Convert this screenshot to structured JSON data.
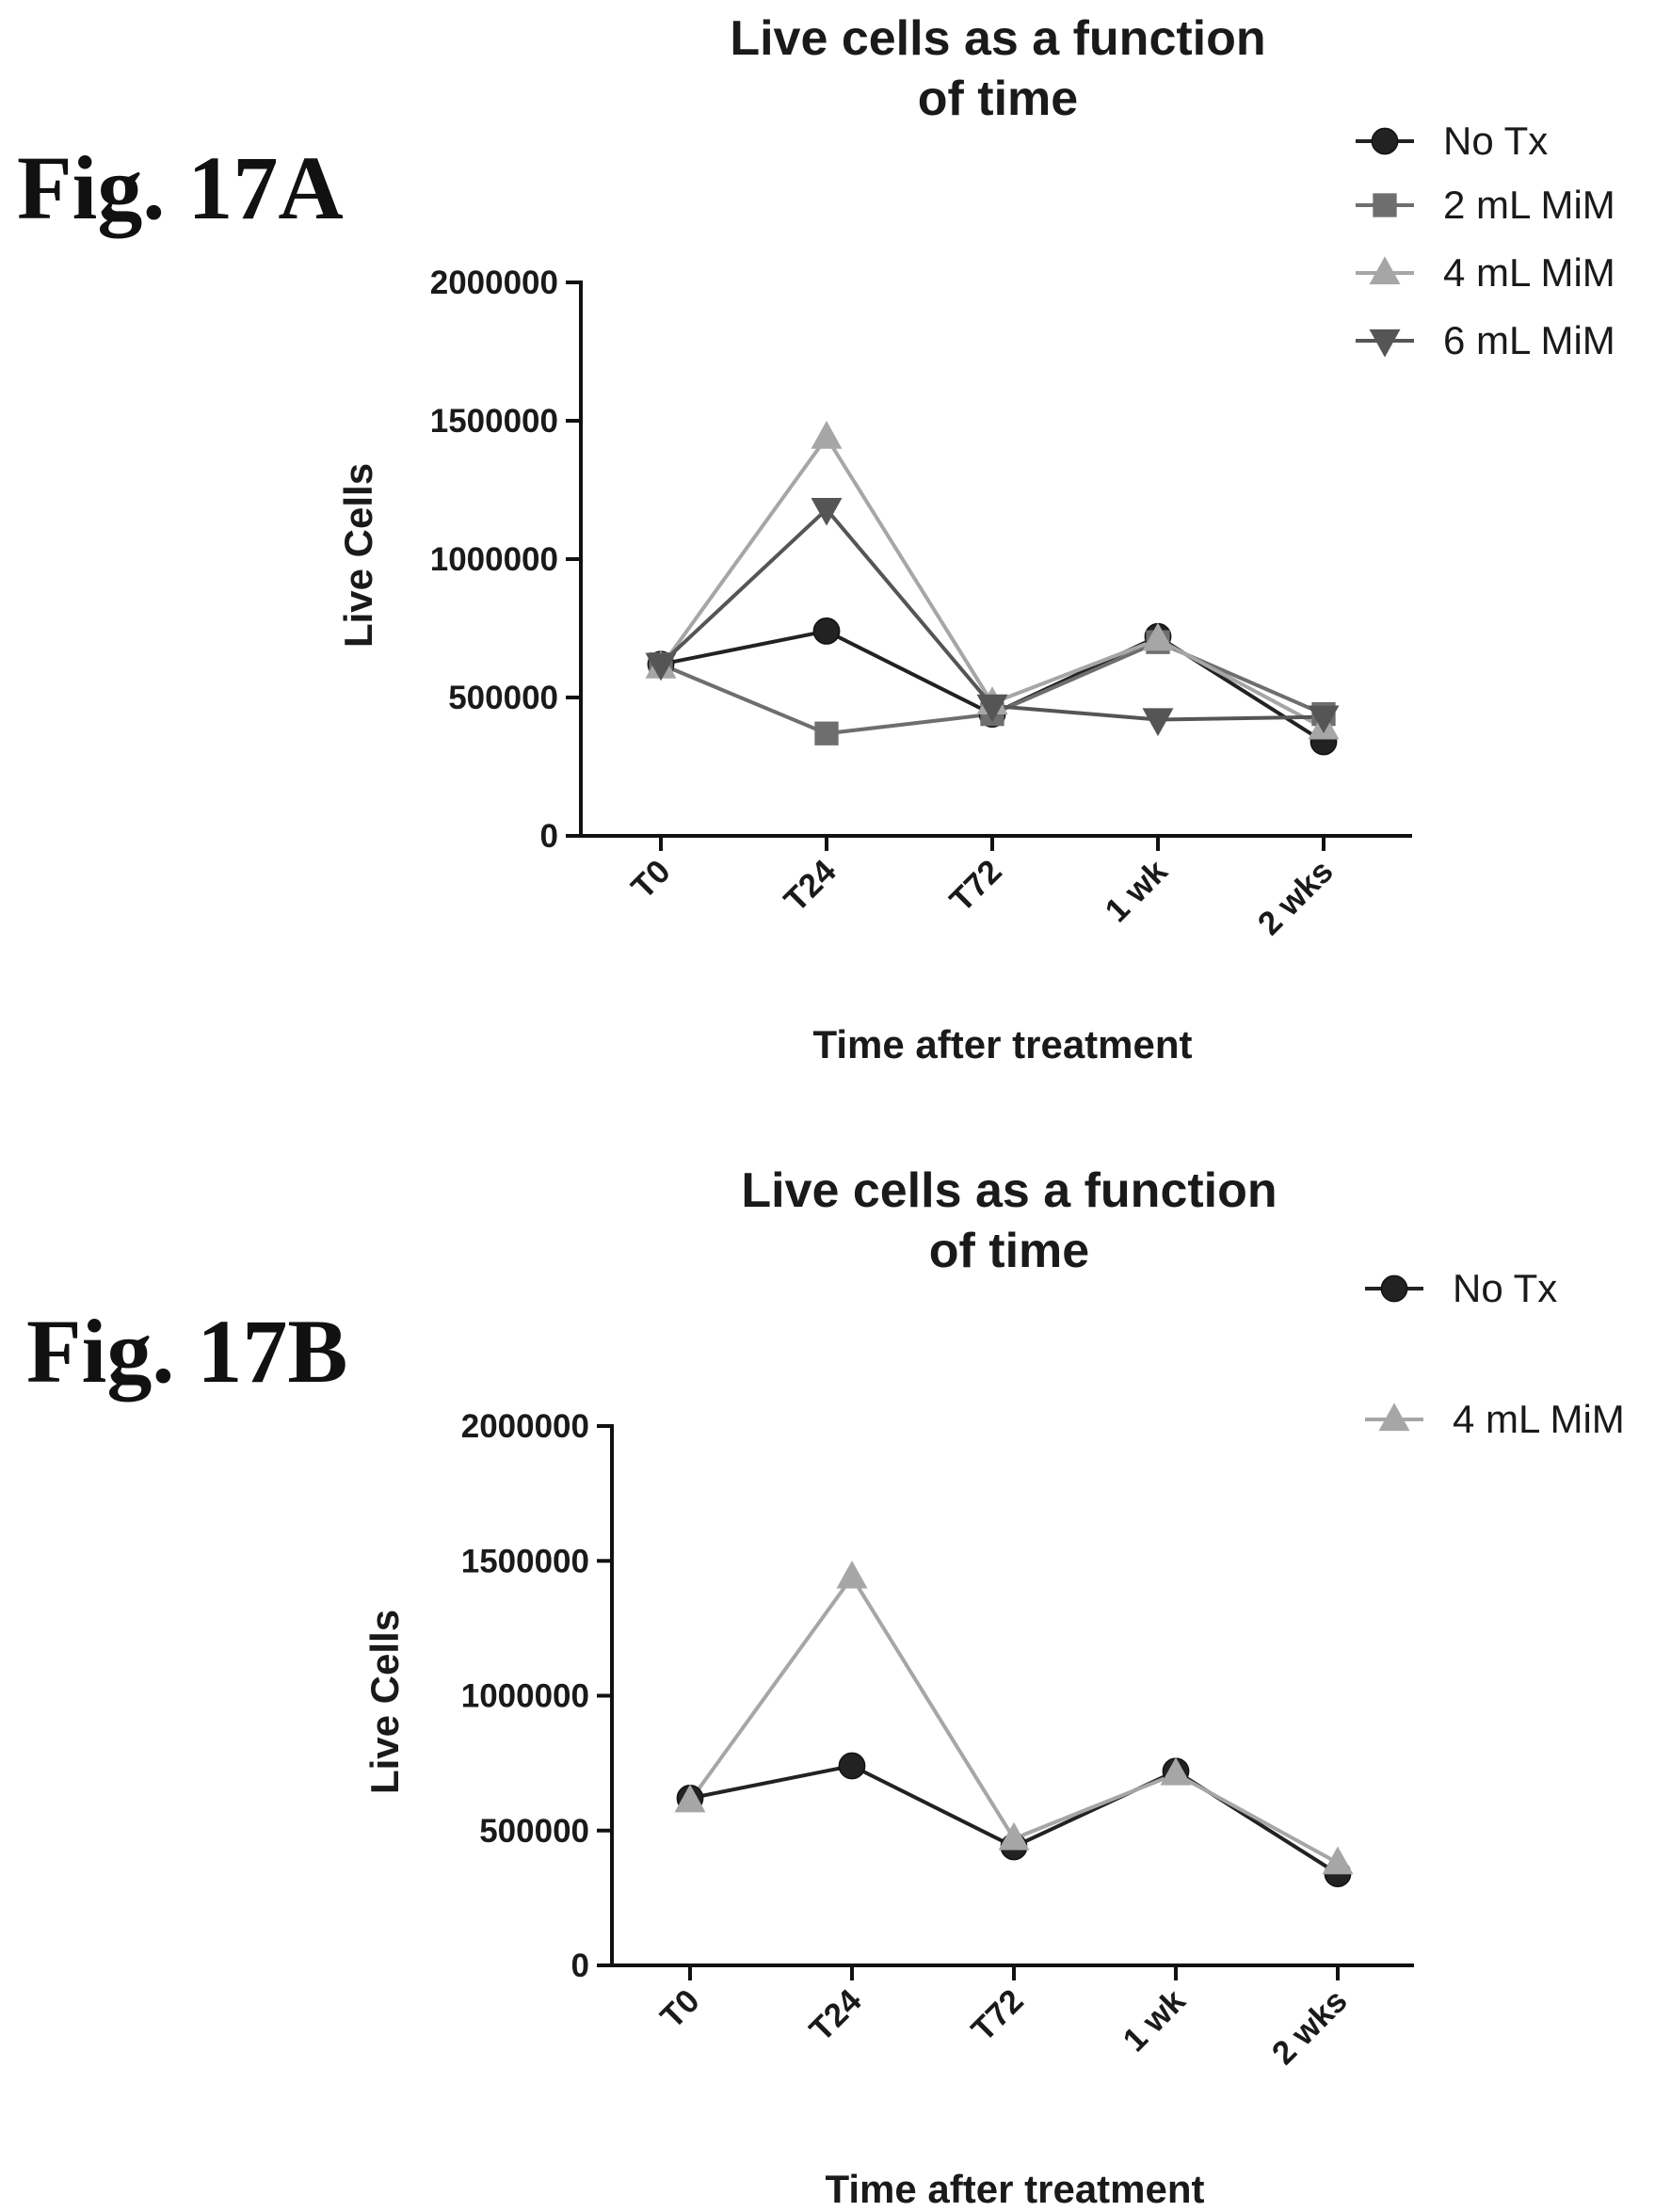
{
  "figures": [
    {
      "label": "Fig. 17A",
      "chart_data": {
        "type": "line",
        "title": "Live cells as a function of time",
        "title_lines": [
          "Live cells as a function",
          "of time"
        ],
        "xlabel": "Time after treatment",
        "ylabel": "Live  Cells",
        "categories": [
          "T0",
          "T24",
          "T72",
          "1 wk",
          "2 wks"
        ],
        "ylim": [
          0,
          2000000
        ],
        "yticks": [
          0,
          500000,
          1000000,
          1500000,
          2000000
        ],
        "ytick_labels": [
          "0",
          "500000",
          "1000000",
          "1500000",
          "2000000"
        ],
        "grid": false,
        "legend": "top-right",
        "series": [
          {
            "name": "No Tx",
            "values": [
              620000,
              740000,
              440000,
              720000,
              340000
            ],
            "color": "#222222",
            "marker": "circle"
          },
          {
            "name": "2 mL MiM",
            "values": [
              620000,
              370000,
              440000,
              700000,
              440000
            ],
            "color": "#6e6e6e",
            "marker": "square"
          },
          {
            "name": "4 mL MiM",
            "values": [
              610000,
              1440000,
              480000,
              710000,
              390000
            ],
            "color": "#a6a6a6",
            "marker": "triangle-up"
          },
          {
            "name": "6 mL MiM",
            "values": [
              620000,
              1180000,
              470000,
              420000,
              430000
            ],
            "color": "#555555",
            "marker": "triangle-down"
          }
        ]
      }
    },
    {
      "label": "Fig. 17B",
      "chart_data": {
        "type": "line",
        "title": "Live cells as a function of time",
        "title_lines": [
          "Live cells as a function",
          "of time"
        ],
        "xlabel": "Time after treatment",
        "ylabel": "Live  Cells",
        "categories": [
          "T0",
          "T24",
          "T72",
          "1 wk",
          "2 wks"
        ],
        "ylim": [
          0,
          2000000
        ],
        "yticks": [
          0,
          500000,
          1000000,
          1500000,
          2000000
        ],
        "ytick_labels": [
          "0",
          "500000",
          "1000000",
          "1500000",
          "2000000"
        ],
        "grid": false,
        "legend": "top-right",
        "series": [
          {
            "name": "No Tx",
            "values": [
              620000,
              740000,
              440000,
              720000,
              340000
            ],
            "color": "#222222",
            "marker": "circle"
          },
          {
            "name": "4 mL MiM",
            "values": [
              610000,
              1440000,
              470000,
              710000,
              380000
            ],
            "color": "#a6a6a6",
            "marker": "triangle-up"
          }
        ]
      }
    }
  ]
}
